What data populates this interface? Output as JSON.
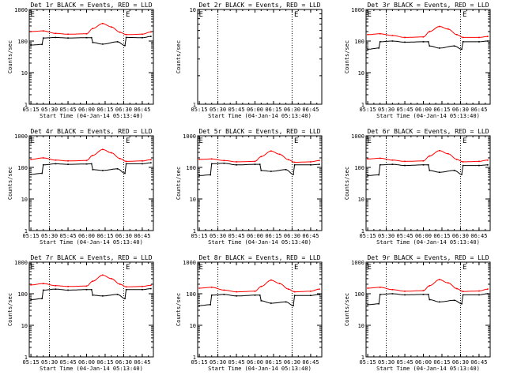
{
  "figure": {
    "background": "#ffffff",
    "events_color": "#000000",
    "lld_color": "#ff0000"
  },
  "chart_data": [
    {
      "type": "line",
      "title": "Det 1r BLACK = Events, RED = LLD",
      "xlabel": "Start Time (04-Jan-14 05:13:40)",
      "ylabel": "Counts/sec",
      "xlim": [
        "05:13:40",
        "06:54:00"
      ],
      "xticks": [
        "05:15",
        "05:30",
        "05:45",
        "06:00",
        "06:15",
        "06:30",
        "06:45"
      ],
      "yscale": "log",
      "ylim": [
        1,
        1000
      ],
      "yticks": [
        "1",
        "10",
        "100",
        "1000"
      ],
      "vlines": [
        "05:30",
        "06:30"
      ],
      "annotations": [
        {
          "text": "E",
          "x": "05:14"
        },
        {
          "text": "E",
          "x": "06:31"
        }
      ],
      "series": [
        {
          "name": "Events",
          "color": "#000000",
          "x": [
            "05:15",
            "05:24",
            "05:25",
            "05:35",
            "05:45",
            "06:00",
            "06:04",
            "06:05",
            "06:13",
            "06:25",
            "06:31",
            "06:32",
            "06:45",
            "06:52"
          ],
          "values": [
            75,
            78,
            125,
            130,
            125,
            128,
            128,
            90,
            80,
            95,
            72,
            130,
            128,
            140
          ]
        },
        {
          "name": "LLD",
          "color": "#ff0000",
          "x": [
            "05:15",
            "05:25",
            "05:35",
            "05:45",
            "06:00",
            "06:05",
            "06:13",
            "06:20",
            "06:27",
            "06:32",
            "06:45",
            "06:52"
          ],
          "values": [
            200,
            210,
            175,
            165,
            170,
            250,
            360,
            280,
            190,
            160,
            165,
            195
          ]
        }
      ]
    },
    {
      "type": "line",
      "title": "Det 2r BLACK = Events, RED = LLD",
      "xlabel": "Start Time (04-Jan-14 05:13:40)",
      "ylabel": "Counts/sec",
      "xlim": [
        "05:13:40",
        "06:54:00"
      ],
      "xticks": [
        "05:15",
        "05:30",
        "05:45",
        "06:00",
        "06:15",
        "06:30",
        "06:45"
      ],
      "yscale": "log",
      "ylim": [
        1,
        10
      ],
      "yticks": [
        "1",
        "10"
      ],
      "vlines": [
        "05:30",
        "06:30"
      ],
      "annotations": [
        {
          "text": "E",
          "x": "05:14"
        },
        {
          "text": "E",
          "x": "06:31"
        }
      ],
      "series": []
    },
    {
      "type": "line",
      "title": "Det 3r BLACK = Events, RED = LLD",
      "xlabel": "Start Time (04-Jan-14 05:13:40)",
      "ylabel": "Counts/sec",
      "xlim": [
        "05:13:40",
        "06:54:00"
      ],
      "xticks": [
        "05:15",
        "05:30",
        "05:45",
        "06:00",
        "06:15",
        "06:30",
        "06:45"
      ],
      "yscale": "log",
      "ylim": [
        1,
        1000
      ],
      "yticks": [
        "1",
        "10",
        "100",
        "1000"
      ],
      "vlines": [
        "05:30",
        "06:30"
      ],
      "annotations": [
        {
          "text": "E",
          "x": "05:14"
        },
        {
          "text": "E",
          "x": "06:31"
        }
      ],
      "series": [
        {
          "name": "Events",
          "color": "#000000",
          "x": [
            "05:15",
            "05:24",
            "05:25",
            "05:35",
            "05:45",
            "06:00",
            "06:04",
            "06:05",
            "06:13",
            "06:25",
            "06:31",
            "06:32",
            "06:45",
            "06:52"
          ],
          "values": [
            55,
            60,
            95,
            100,
            92,
            95,
            95,
            70,
            60,
            70,
            55,
            95,
            95,
            100
          ]
        },
        {
          "name": "LLD",
          "color": "#ff0000",
          "x": [
            "05:15",
            "05:25",
            "05:35",
            "05:45",
            "06:00",
            "06:05",
            "06:13",
            "06:20",
            "06:27",
            "06:32",
            "06:45",
            "06:52"
          ],
          "values": [
            160,
            170,
            150,
            130,
            135,
            200,
            290,
            240,
            160,
            130,
            130,
            140
          ]
        }
      ]
    },
    {
      "type": "line",
      "title": "Det 4r BLACK = Events, RED = LLD",
      "xlabel": "Start Time (04-Jan-14 05:13:40)",
      "ylabel": "Counts/sec",
      "xlim": [
        "05:13:40",
        "06:54:00"
      ],
      "xticks": [
        "05:15",
        "05:30",
        "05:45",
        "06:00",
        "06:15",
        "06:30",
        "06:45"
      ],
      "yscale": "log",
      "ylim": [
        1,
        1000
      ],
      "yticks": [
        "1",
        "10",
        "100",
        "1000"
      ],
      "vlines": [
        "05:30",
        "06:30"
      ],
      "annotations": [
        {
          "text": "E",
          "x": "05:14"
        },
        {
          "text": "E",
          "x": "06:31"
        }
      ],
      "series": [
        {
          "name": "Events",
          "color": "#000000",
          "x": [
            "05:15",
            "05:24",
            "05:25",
            "05:35",
            "05:45",
            "06:00",
            "06:04",
            "06:05",
            "06:13",
            "06:25",
            "06:31",
            "06:32",
            "06:45",
            "06:52"
          ],
          "values": [
            60,
            65,
            120,
            130,
            125,
            128,
            130,
            85,
            80,
            90,
            65,
            130,
            130,
            140
          ]
        },
        {
          "name": "LLD",
          "color": "#ff0000",
          "x": [
            "05:15",
            "05:25",
            "05:35",
            "05:45",
            "06:00",
            "06:05",
            "06:13",
            "06:20",
            "06:27",
            "06:32",
            "06:45",
            "06:52"
          ],
          "values": [
            180,
            200,
            170,
            160,
            165,
            240,
            370,
            290,
            190,
            155,
            160,
            175
          ]
        }
      ]
    },
    {
      "type": "line",
      "title": "Det 5r BLACK = Events, RED = LLD",
      "xlabel": "Start Time (04-Jan-14 05:13:40)",
      "ylabel": "Counts/sec",
      "xlim": [
        "05:13:40",
        "06:54:00"
      ],
      "xticks": [
        "05:15",
        "05:30",
        "05:45",
        "06:00",
        "06:15",
        "06:30",
        "06:45"
      ],
      "yscale": "log",
      "ylim": [
        1,
        1000
      ],
      "yticks": [
        "1",
        "10",
        "100",
        "1000"
      ],
      "vlines": [
        "05:30",
        "06:30"
      ],
      "annotations": [
        {
          "text": "E",
          "x": "05:14"
        },
        {
          "text": "E",
          "x": "06:31"
        }
      ],
      "series": [
        {
          "name": "Events",
          "color": "#000000",
          "x": [
            "05:15",
            "05:24",
            "05:25",
            "05:35",
            "05:45",
            "06:00",
            "06:04",
            "06:05",
            "06:13",
            "06:25",
            "06:31",
            "06:32",
            "06:45",
            "06:52"
          ],
          "values": [
            55,
            58,
            130,
            135,
            120,
            125,
            125,
            80,
            75,
            85,
            60,
            120,
            120,
            125
          ]
        },
        {
          "name": "LLD",
          "color": "#ff0000",
          "x": [
            "05:15",
            "05:25",
            "05:35",
            "05:45",
            "06:00",
            "06:05",
            "06:13",
            "06:20",
            "06:27",
            "06:32",
            "06:45",
            "06:52"
          ],
          "values": [
            180,
            185,
            165,
            150,
            155,
            220,
            330,
            260,
            175,
            145,
            150,
            165
          ]
        }
      ]
    },
    {
      "type": "line",
      "title": "Det 6r BLACK = Events, RED = LLD",
      "xlabel": "Start Time (04-Jan-14 05:13:40)",
      "ylabel": "Counts/sec",
      "xlim": [
        "05:13:40",
        "06:54:00"
      ],
      "xticks": [
        "05:15",
        "05:30",
        "05:45",
        "06:00",
        "06:15",
        "06:30",
        "06:45"
      ],
      "yscale": "log",
      "ylim": [
        1,
        1000
      ],
      "yticks": [
        "1",
        "10",
        "100",
        "1000"
      ],
      "vlines": [
        "05:30",
        "06:30"
      ],
      "annotations": [
        {
          "text": "E",
          "x": "05:14"
        },
        {
          "text": "E",
          "x": "06:31"
        }
      ],
      "series": [
        {
          "name": "Events",
          "color": "#000000",
          "x": [
            "05:15",
            "05:24",
            "05:25",
            "05:35",
            "05:45",
            "06:00",
            "06:04",
            "06:05",
            "06:13",
            "06:25",
            "06:31",
            "06:32",
            "06:45",
            "06:52"
          ],
          "values": [
            55,
            58,
            120,
            125,
            115,
            120,
            120,
            80,
            70,
            80,
            60,
            115,
            115,
            120
          ]
        },
        {
          "name": "LLD",
          "color": "#ff0000",
          "x": [
            "05:15",
            "05:25",
            "05:35",
            "05:45",
            "06:00",
            "06:05",
            "06:13",
            "06:20",
            "06:27",
            "06:32",
            "06:45",
            "06:52"
          ],
          "values": [
            185,
            195,
            170,
            155,
            160,
            230,
            340,
            270,
            180,
            150,
            155,
            170
          ]
        }
      ]
    },
    {
      "type": "line",
      "title": "Det 7r BLACK = Events, RED = LLD",
      "xlabel": "Start Time (04-Jan-14 05:13:40)",
      "ylabel": "Counts/sec",
      "xlim": [
        "05:13:40",
        "06:54:00"
      ],
      "xticks": [
        "05:15",
        "05:30",
        "05:45",
        "06:00",
        "06:15",
        "06:30",
        "06:45"
      ],
      "yscale": "log",
      "ylim": [
        1,
        1000
      ],
      "yticks": [
        "1",
        "10",
        "100",
        "1000"
      ],
      "vlines": [
        "05:30",
        "06:30"
      ],
      "annotations": [
        {
          "text": "E",
          "x": "05:14"
        },
        {
          "text": "E",
          "x": "06:31"
        }
      ],
      "series": [
        {
          "name": "Events",
          "color": "#000000",
          "x": [
            "05:15",
            "05:24",
            "05:25",
            "05:35",
            "05:45",
            "06:00",
            "06:04",
            "06:05",
            "06:13",
            "06:25",
            "06:31",
            "06:32",
            "06:45",
            "06:52"
          ],
          "values": [
            65,
            70,
            130,
            140,
            130,
            135,
            135,
            90,
            85,
            95,
            70,
            135,
            135,
            145
          ]
        },
        {
          "name": "LLD",
          "color": "#ff0000",
          "x": [
            "05:15",
            "05:25",
            "05:35",
            "05:45",
            "06:00",
            "06:05",
            "06:13",
            "06:20",
            "06:27",
            "06:32",
            "06:45",
            "06:52"
          ],
          "values": [
            190,
            210,
            180,
            170,
            175,
            250,
            390,
            300,
            200,
            165,
            170,
            185
          ]
        }
      ]
    },
    {
      "type": "line",
      "title": "Det 8r BLACK = Events, RED = LLD",
      "xlabel": "Start Time (04-Jan-14 05:13:40)",
      "ylabel": "Counts/sec",
      "xlim": [
        "05:13:40",
        "06:54:00"
      ],
      "xticks": [
        "05:15",
        "05:30",
        "05:45",
        "06:00",
        "06:15",
        "06:30",
        "06:45"
      ],
      "yscale": "log",
      "ylim": [
        1,
        1000
      ],
      "yticks": [
        "1",
        "10",
        "100",
        "1000"
      ],
      "vlines": [
        "05:30",
        "06:30"
      ],
      "annotations": [
        {
          "text": "E",
          "x": "05:14"
        },
        {
          "text": "E",
          "x": "06:31"
        }
      ],
      "series": [
        {
          "name": "Events",
          "color": "#000000",
          "x": [
            "05:15",
            "05:24",
            "05:25",
            "05:35",
            "05:45",
            "06:00",
            "06:04",
            "06:05",
            "06:13",
            "06:25",
            "06:31",
            "06:32",
            "06:45",
            "06:52"
          ],
          "values": [
            42,
            45,
            90,
            95,
            85,
            90,
            90,
            60,
            50,
            55,
            42,
            88,
            88,
            95
          ]
        },
        {
          "name": "LLD",
          "color": "#ff0000",
          "x": [
            "05:15",
            "05:25",
            "05:35",
            "05:45",
            "06:00",
            "06:05",
            "06:13",
            "06:20",
            "06:27",
            "06:32",
            "06:45",
            "06:52"
          ],
          "values": [
            150,
            160,
            130,
            115,
            120,
            170,
            270,
            210,
            140,
            115,
            120,
            140
          ]
        }
      ]
    },
    {
      "type": "line",
      "title": "Det 9r BLACK = Events, RED = LLD",
      "xlabel": "Start Time (04-Jan-14 05:13:40)",
      "ylabel": "Counts/sec",
      "xlim": [
        "05:13:40",
        "06:54:00"
      ],
      "xticks": [
        "05:15",
        "05:30",
        "05:45",
        "06:00",
        "06:15",
        "06:30",
        "06:45"
      ],
      "yscale": "log",
      "ylim": [
        1,
        1000
      ],
      "yticks": [
        "1",
        "10",
        "100",
        "1000"
      ],
      "vlines": [
        "05:30",
        "06:30"
      ],
      "annotations": [
        {
          "text": "E",
          "x": "05:14"
        },
        {
          "text": "E",
          "x": "06:31"
        }
      ],
      "series": [
        {
          "name": "Events",
          "color": "#000000",
          "x": [
            "05:15",
            "05:24",
            "05:25",
            "05:35",
            "05:45",
            "06:00",
            "06:04",
            "06:05",
            "06:13",
            "06:25",
            "06:31",
            "06:32",
            "06:45",
            "06:52"
          ],
          "values": [
            45,
            48,
            95,
            100,
            92,
            95,
            95,
            65,
            55,
            62,
            48,
            92,
            92,
            100
          ]
        },
        {
          "name": "LLD",
          "color": "#ff0000",
          "x": [
            "05:15",
            "05:25",
            "05:35",
            "05:45",
            "06:00",
            "06:05",
            "06:13",
            "06:20",
            "06:27",
            "06:32",
            "06:45",
            "06:52"
          ],
          "values": [
            150,
            160,
            135,
            120,
            125,
            180,
            280,
            220,
            145,
            118,
            122,
            140
          ]
        }
      ]
    }
  ]
}
